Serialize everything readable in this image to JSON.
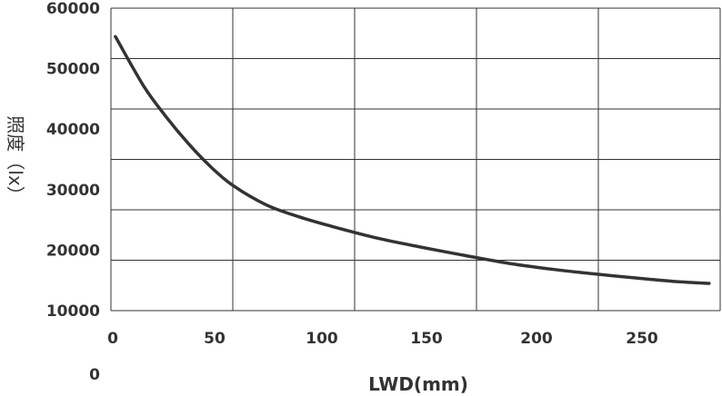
{
  "chart_data": {
    "type": "line",
    "xlabel": "LWD(mm)",
    "ylabel": "照度（lx）",
    "xlim": [
      0,
      275
    ],
    "ylim": [
      10000,
      60000
    ],
    "x_ticks": [
      "0",
      "50",
      "100",
      "150",
      "200",
      "250"
    ],
    "y_ticks": [
      "10000",
      "20000",
      "30000",
      "40000",
      "50000",
      "60000"
    ],
    "extra_label": "0",
    "grid": true,
    "line_color": "#333333",
    "series": [
      {
        "x": [
          2,
          15,
          25,
          35,
          45,
          55,
          70,
          85,
          100,
          120,
          140,
          160,
          180,
          200,
          220,
          240,
          255,
          270
        ],
        "y": [
          55300,
          47000,
          42000,
          37600,
          33800,
          30700,
          27500,
          25500,
          23900,
          22000,
          20500,
          19100,
          17800,
          16800,
          16000,
          15300,
          14800,
          14500
        ]
      }
    ]
  }
}
